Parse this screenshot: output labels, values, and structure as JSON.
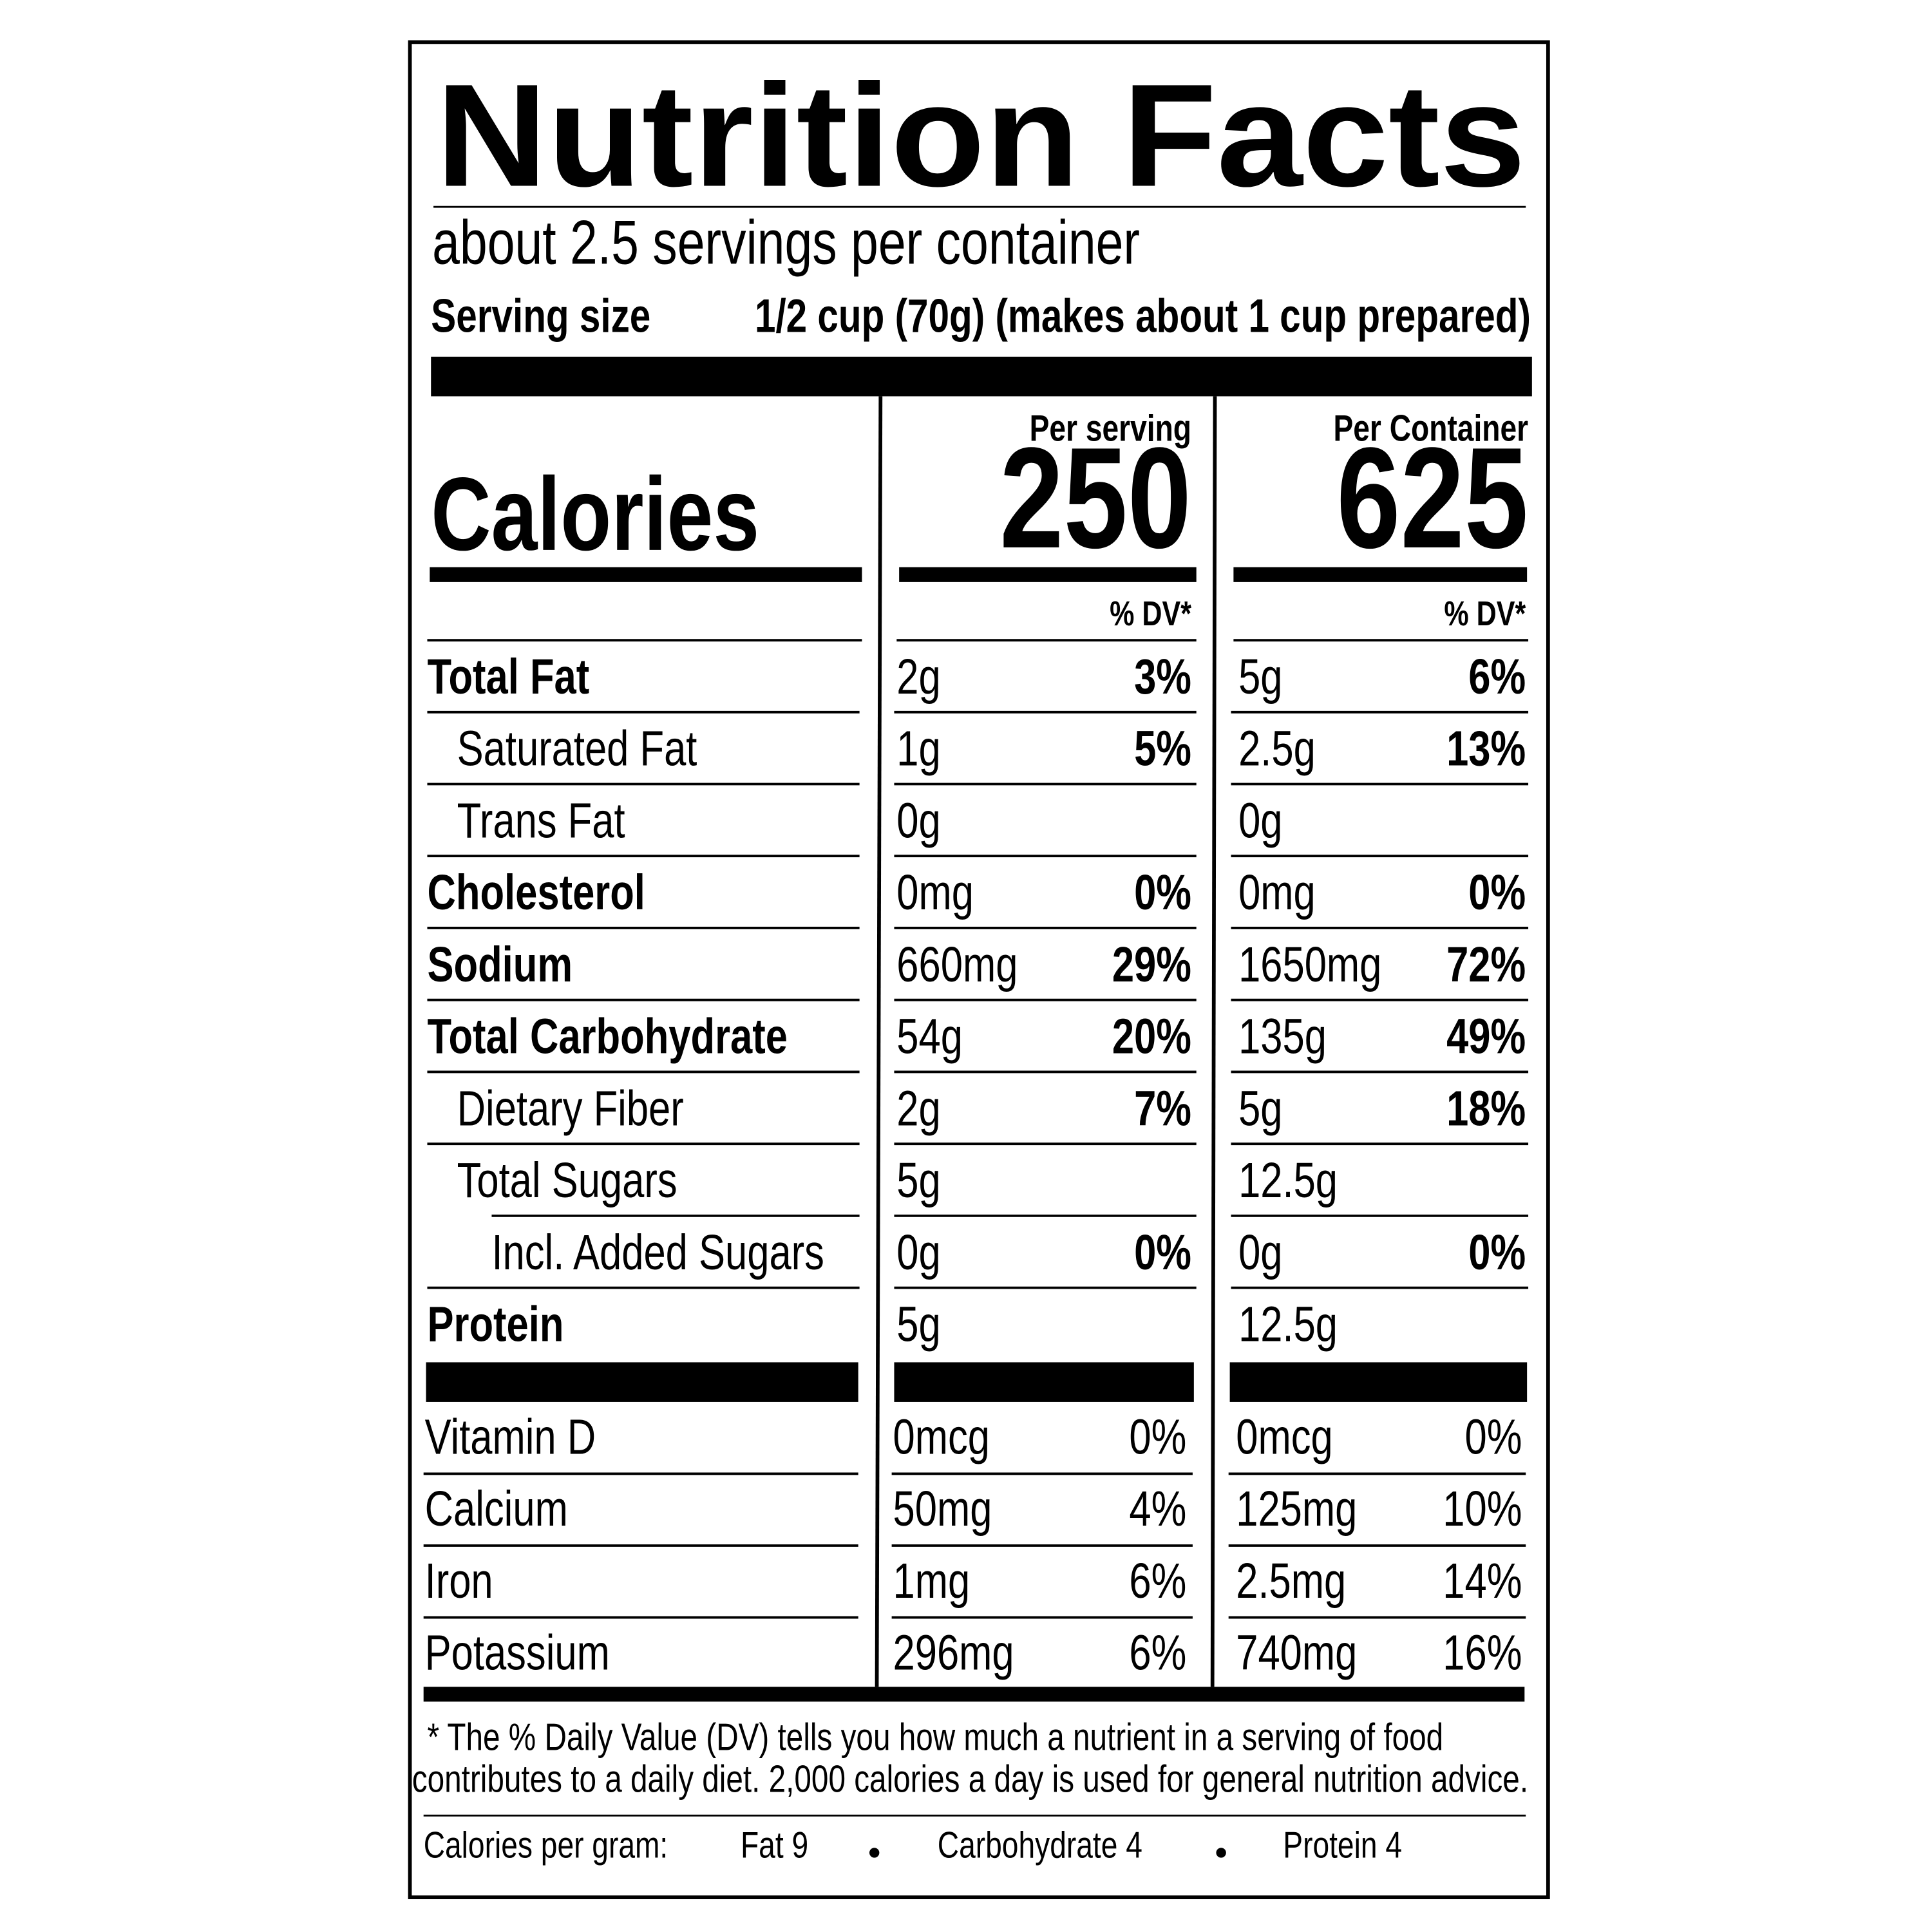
{
  "title": "Nutrition Facts",
  "servings": "about 2.5 servings per container",
  "serving_size": {
    "label": "Serving size",
    "value": "1/2 cup (70g) (makes about 1 cup prepared)"
  },
  "calories": {
    "label": "Calories",
    "per_serving_header": "Per serving",
    "per_serving": "250",
    "per_container_header": "Per Container",
    "per_container": "625"
  },
  "dv_header": [
    "% DV*",
    "% DV*"
  ],
  "rows": [
    {
      "name": "Total Fat",
      "serving_amount": "2g",
      "serving_dv": "3%",
      "container_amount": "5g",
      "container_dv": "6%"
    },
    {
      "name": "Saturated Fat",
      "serving_amount": "1g",
      "serving_dv": "5%",
      "container_amount": "2.5g",
      "container_dv": "13%"
    },
    {
      "name": "Trans Fat",
      "serving_amount": "0g",
      "container_amount": "0g"
    },
    {
      "name": "Cholesterol",
      "serving_amount": "0mg",
      "serving_dv": "0%",
      "container_amount": "0mg",
      "container_dv": "0%"
    },
    {
      "name": "Sodium",
      "serving_amount": "660mg",
      "serving_dv": "29%",
      "container_amount": "1650mg",
      "container_dv": "72%"
    },
    {
      "name": "Total Carbohydrate",
      "serving_amount": "54g",
      "serving_dv": "20%",
      "container_amount": "135g",
      "container_dv": "49%"
    },
    {
      "name": "Dietary Fiber",
      "serving_amount": "2g",
      "serving_dv": "7%",
      "container_amount": "5g",
      "container_dv": "18%"
    },
    {
      "name": "Total Sugars",
      "serving_amount": "5g",
      "container_amount": "12.5g"
    },
    {
      "name": "Incl. Added Sugars",
      "serving_amount": "0g",
      "serving_dv": "0%",
      "container_amount": "0g",
      "container_dv": "0%"
    },
    {
      "name": "Protein",
      "serving_amount": "5g",
      "container_amount": "12.5g"
    }
  ],
  "vitamins": [
    {
      "name": "Vitamin D",
      "serving_amount": "0mcg",
      "serving_dv": "0%",
      "container_amount": "0mcg",
      "container_dv": "0%"
    },
    {
      "name": "Calcium",
      "serving_amount": "50mg",
      "serving_dv": "4%",
      "container_amount": "125mg",
      "container_dv": "10%"
    },
    {
      "name": "Iron",
      "serving_amount": "1mg",
      "serving_dv": "6%",
      "container_amount": "2.5mg",
      "container_dv": "14%"
    },
    {
      "name": "Potassium",
      "serving_amount": "296mg",
      "serving_dv": "6%",
      "container_amount": "740mg",
      "container_dv": "16%"
    }
  ],
  "footnote": [
    "* The % Daily Value (DV) tells you how much a nutrient in a serving of food",
    "contributes to a daily diet. 2,000 calories a day is used for general nutrition advice."
  ],
  "calories_per_gram": {
    "label": "Calories per gram:",
    "items": [
      "Fat 9",
      "Carbohydrate 4",
      "Protein 4"
    ]
  }
}
